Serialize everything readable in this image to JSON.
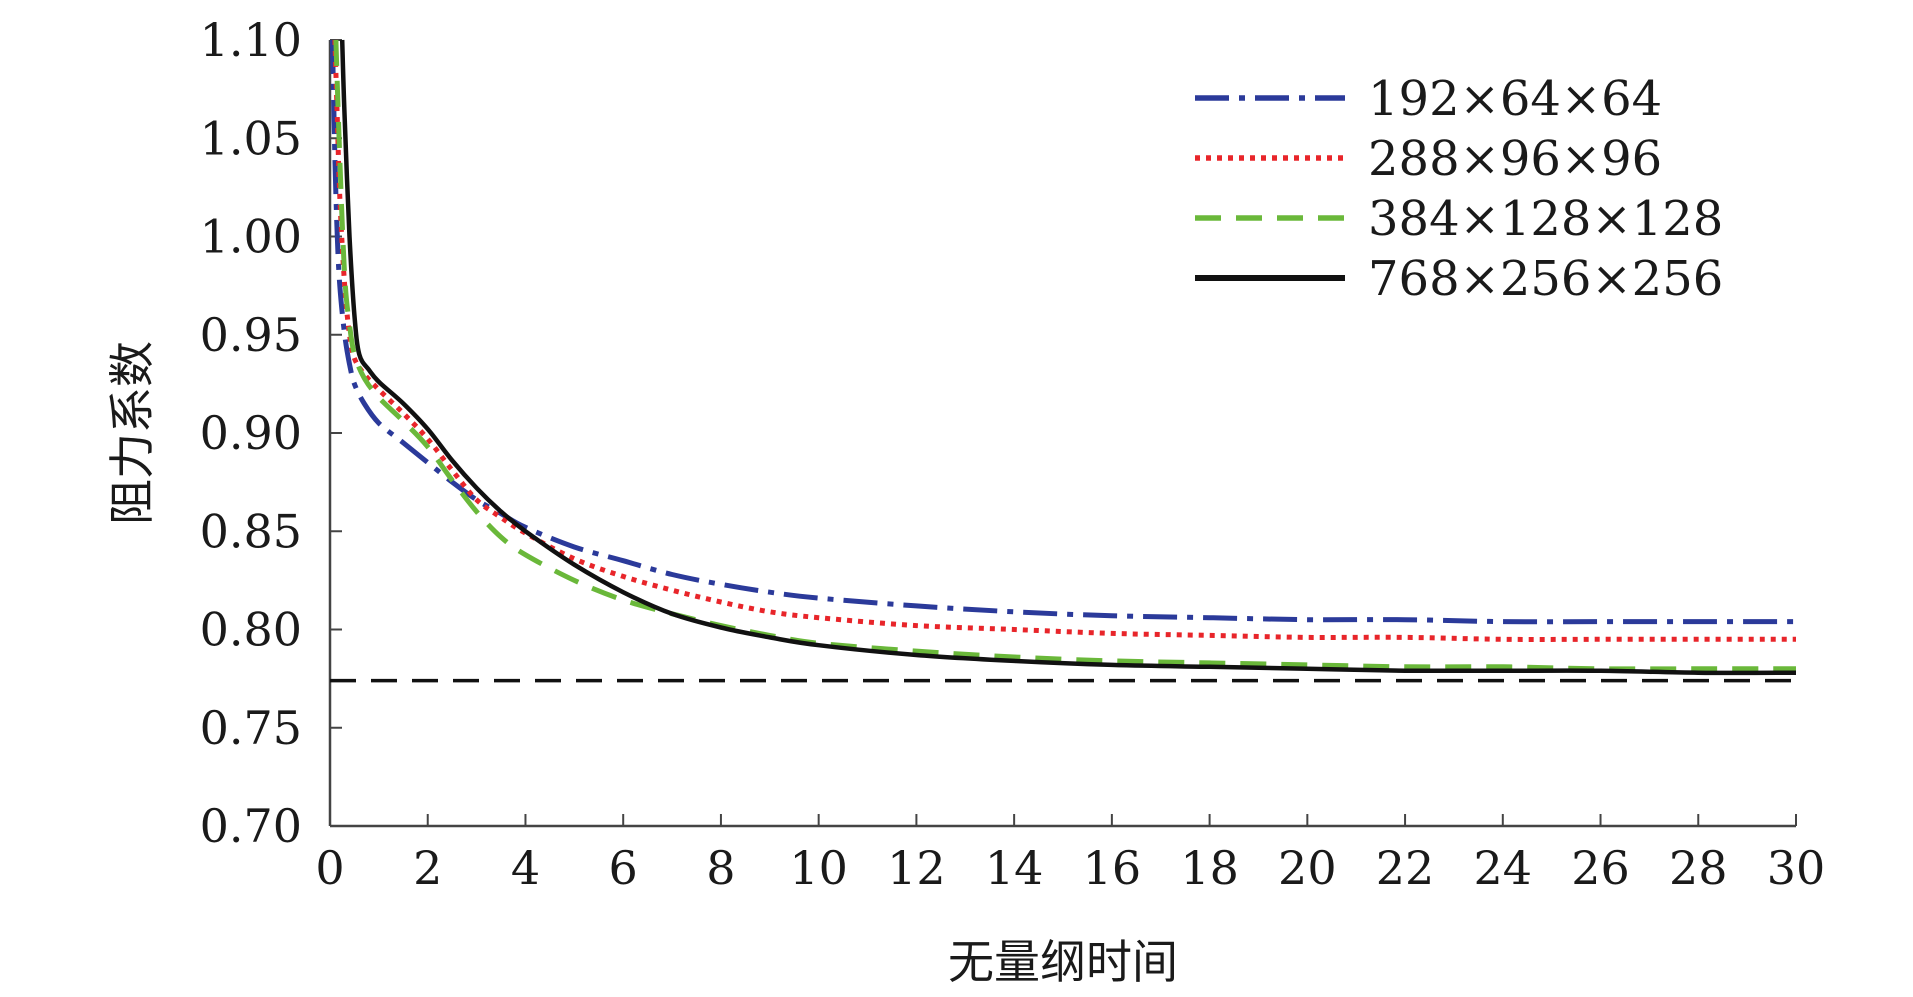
{
  "chart_data": {
    "type": "line",
    "title": "",
    "xlabel": "无量纲时间",
    "ylabel": "阻力系数",
    "xlim": [
      0,
      30
    ],
    "ylim": [
      0.7,
      1.1
    ],
    "xticks": [
      0,
      2,
      4,
      6,
      8,
      10,
      12,
      14,
      16,
      18,
      20,
      22,
      24,
      26,
      28,
      30
    ],
    "xtick_labels": [
      "0",
      "2",
      "4",
      "6",
      "8",
      "10",
      "12",
      "14",
      "16",
      "18",
      "20",
      "22",
      "24",
      "26",
      "28",
      "30"
    ],
    "yticks": [
      0.7,
      0.75,
      0.8,
      0.85,
      0.9,
      0.95,
      1.0,
      1.05,
      1.1
    ],
    "ytick_labels": [
      "0.70",
      "0.75",
      "0.80",
      "0.85",
      "0.90",
      "0.95",
      "1.00",
      "1.05",
      "1.10"
    ],
    "grid": false,
    "legend_position": "top-right",
    "series": [
      {
        "name": "192×64×64",
        "color": "#2b3a9a",
        "style": "dashdot",
        "x": [
          0.05,
          0.1,
          0.15,
          0.2,
          0.3,
          0.4,
          0.5,
          0.7,
          1.0,
          1.5,
          2,
          2.5,
          3,
          3.5,
          4,
          5,
          6,
          7,
          8,
          9,
          10,
          12,
          14,
          16,
          18,
          20,
          22,
          24,
          26,
          28,
          30
        ],
        "y": [
          1.1,
          1.04,
          1.0,
          0.975,
          0.95,
          0.935,
          0.925,
          0.915,
          0.905,
          0.895,
          0.885,
          0.875,
          0.866,
          0.859,
          0.852,
          0.842,
          0.835,
          0.828,
          0.823,
          0.819,
          0.816,
          0.812,
          0.809,
          0.807,
          0.806,
          0.805,
          0.805,
          0.804,
          0.804,
          0.804,
          0.804
        ]
      },
      {
        "name": "288×96×96",
        "color": "#e8252a",
        "style": "dotted",
        "x": [
          0.1,
          0.15,
          0.2,
          0.3,
          0.4,
          0.5,
          0.7,
          1.0,
          1.5,
          2,
          2.5,
          3,
          3.5,
          4,
          5,
          6,
          7,
          8,
          9,
          10,
          12,
          14,
          16,
          18,
          20,
          22,
          24,
          26,
          28,
          30
        ],
        "y": [
          1.1,
          1.06,
          1.02,
          0.975,
          0.95,
          0.938,
          0.93,
          0.922,
          0.91,
          0.897,
          0.881,
          0.866,
          0.857,
          0.849,
          0.836,
          0.827,
          0.82,
          0.814,
          0.809,
          0.806,
          0.802,
          0.8,
          0.798,
          0.797,
          0.796,
          0.796,
          0.795,
          0.795,
          0.795,
          0.795
        ]
      },
      {
        "name": "384×128×128",
        "color": "#6ab83a",
        "style": "dashed",
        "x": [
          0.12,
          0.2,
          0.3,
          0.4,
          0.5,
          0.7,
          1.0,
          1.5,
          2,
          2.5,
          3,
          3.5,
          4,
          5,
          6,
          7,
          8,
          9,
          10,
          12,
          14,
          16,
          18,
          20,
          22,
          24,
          26,
          28,
          30
        ],
        "y": [
          1.1,
          1.04,
          0.98,
          0.955,
          0.94,
          0.928,
          0.918,
          0.906,
          0.893,
          0.876,
          0.86,
          0.847,
          0.838,
          0.825,
          0.815,
          0.808,
          0.802,
          0.797,
          0.793,
          0.789,
          0.786,
          0.784,
          0.783,
          0.782,
          0.781,
          0.781,
          0.78,
          0.78,
          0.78
        ]
      },
      {
        "name": "768×256×256",
        "color": "#111111",
        "style": "solid",
        "x": [
          0.25,
          0.3,
          0.4,
          0.5,
          0.6,
          0.8,
          1.0,
          1.5,
          2,
          2.5,
          3,
          3.5,
          4,
          5,
          6,
          7,
          8,
          9,
          10,
          12,
          14,
          16,
          18,
          20,
          22,
          24,
          26,
          28,
          30
        ],
        "y": [
          1.1,
          1.06,
          1.0,
          0.96,
          0.94,
          0.932,
          0.926,
          0.915,
          0.902,
          0.886,
          0.872,
          0.86,
          0.85,
          0.833,
          0.819,
          0.808,
          0.801,
          0.796,
          0.792,
          0.787,
          0.784,
          0.782,
          0.781,
          0.78,
          0.779,
          0.779,
          0.779,
          0.778,
          0.778
        ]
      }
    ],
    "reference_lines": [
      {
        "y": 0.774,
        "color": "#111111",
        "style": "dashed"
      }
    ]
  }
}
